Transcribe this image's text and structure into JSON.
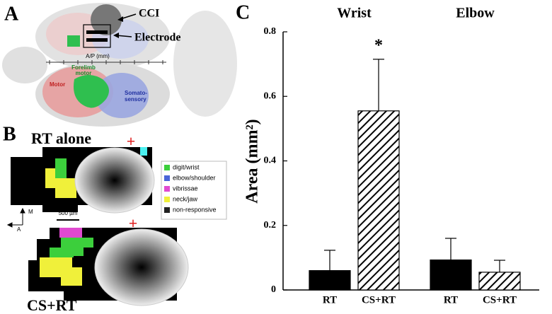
{
  "panel_labels": [
    "A",
    "B",
    "C"
  ],
  "panel_a": {
    "cci": "CCI",
    "electrode": "Electrode",
    "ap_axis": "A/P (mm)",
    "forelimb_motor": [
      "Forelimb",
      "motor"
    ],
    "motor": "Motor",
    "somatosensory": [
      "Somato-",
      "sensory"
    ]
  },
  "panel_b": {
    "conditions": [
      "RT alone",
      "CS+RT"
    ],
    "stimulation_marker": "+",
    "legend": [
      {
        "label": "digit/wrist",
        "color": "#3ccf3c"
      },
      {
        "label": "elbow/shoulder",
        "color": "#4a64d8"
      },
      {
        "label": "vibrissae",
        "color": "#e04ad0"
      },
      {
        "label": "neck/jaw",
        "color": "#f0f03a"
      },
      {
        "label": "non-responsive",
        "color": "#222222"
      }
    ],
    "scale_bar": "500 µm",
    "compass": [
      "M",
      "A"
    ]
  },
  "chart_data": {
    "type": "bar",
    "groups": [
      "Wrist",
      "Elbow"
    ],
    "y_label": "Area (mm²)",
    "ylim": [
      0,
      0.8
    ],
    "yticks": [
      0,
      0.2,
      0.4,
      0.6,
      0.8
    ],
    "significance_marker": "*",
    "series": [
      {
        "name": "RT",
        "color": "#000000",
        "values": [
          0.06,
          0.093
        ],
        "errors": [
          0.063,
          0.067
        ]
      },
      {
        "name": "CS+RT",
        "color": "#000000",
        "pattern": "hatch",
        "values": [
          0.555,
          0.055
        ],
        "errors": [
          0.16,
          0.037
        ]
      }
    ]
  }
}
